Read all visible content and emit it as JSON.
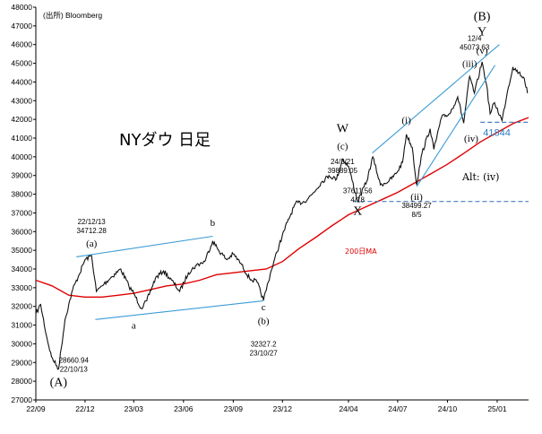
{
  "source": "(出所) Bloomberg",
  "title": "NYダウ 日足",
  "colors": {
    "price": "#111111",
    "ma": "#e00000",
    "channel": "#3b9bd6",
    "level": "#4a7fc1"
  },
  "chart_data": {
    "type": "line",
    "ylim": [
      27000,
      48000
    ],
    "xlim": [
      "2022-09-01",
      "2025-02-28"
    ],
    "grid": false,
    "y_ticks": [
      27000,
      28000,
      29000,
      30000,
      31000,
      32000,
      33000,
      34000,
      35000,
      36000,
      37000,
      38000,
      39000,
      40000,
      41000,
      42000,
      43000,
      44000,
      45000,
      46000,
      47000,
      48000
    ],
    "x_ticks": [
      {
        "date": "2022-09-01",
        "label": "22/09"
      },
      {
        "date": "2022-12-01",
        "label": "22/12"
      },
      {
        "date": "2023-03-01",
        "label": "23/03"
      },
      {
        "date": "2023-06-01",
        "label": "23/06"
      },
      {
        "date": "2023-09-01",
        "label": "23/09"
      },
      {
        "date": "2023-12-01",
        "label": "23/12"
      },
      {
        "date": "2024-04-01",
        "label": "24/04"
      },
      {
        "date": "2024-07-01",
        "label": "24/07"
      },
      {
        "date": "2024-10-01",
        "label": "24/10"
      },
      {
        "date": "2025-01-01",
        "label": "25/01"
      }
    ],
    "series": [
      {
        "role": "price",
        "points": [
          [
            "2022-09-01",
            31600
          ],
          [
            "2022-09-10",
            32100
          ],
          [
            "2022-09-20",
            30500
          ],
          [
            "2022-09-30",
            29300
          ],
          [
            "2022-10-13",
            28661
          ],
          [
            "2022-10-25",
            31300
          ],
          [
            "2022-11-08",
            32900
          ],
          [
            "2022-11-20",
            33700
          ],
          [
            "2022-12-01",
            34500
          ],
          [
            "2022-12-13",
            34712
          ],
          [
            "2022-12-22",
            32800
          ],
          [
            "2023-01-05",
            33200
          ],
          [
            "2023-01-20",
            33600
          ],
          [
            "2023-02-05",
            34000
          ],
          [
            "2023-02-20",
            33100
          ],
          [
            "2023-03-01",
            32700
          ],
          [
            "2023-03-15",
            31900
          ],
          [
            "2023-03-25",
            32300
          ],
          [
            "2023-04-10",
            33500
          ],
          [
            "2023-04-25",
            33900
          ],
          [
            "2023-05-10",
            33400
          ],
          [
            "2023-05-25",
            32800
          ],
          [
            "2023-06-10",
            33800
          ],
          [
            "2023-06-25",
            34200
          ],
          [
            "2023-07-10",
            34400
          ],
          [
            "2023-07-25",
            35500
          ],
          [
            "2023-08-05",
            35000
          ],
          [
            "2023-08-20",
            34500
          ],
          [
            "2023-09-01",
            34800
          ],
          [
            "2023-09-15",
            34300
          ],
          [
            "2023-10-01",
            33500
          ],
          [
            "2023-10-15",
            33300
          ],
          [
            "2023-10-27",
            32327
          ],
          [
            "2023-11-10",
            33900
          ],
          [
            "2023-11-25",
            35300
          ],
          [
            "2023-12-10",
            36500
          ],
          [
            "2023-12-25",
            37500
          ],
          [
            "2024-01-10",
            37600
          ],
          [
            "2024-01-25",
            38000
          ],
          [
            "2024-02-10",
            38600
          ],
          [
            "2024-02-25",
            39000
          ],
          [
            "2024-03-10",
            38800
          ],
          [
            "2024-03-21",
            39889
          ],
          [
            "2024-04-01",
            39500
          ],
          [
            "2024-04-18",
            37612
          ],
          [
            "2024-05-05",
            38700
          ],
          [
            "2024-05-16",
            40000
          ],
          [
            "2024-05-30",
            38500
          ],
          [
            "2024-06-15",
            38700
          ],
          [
            "2024-06-28",
            39100
          ],
          [
            "2024-07-10",
            39700
          ],
          [
            "2024-07-17",
            41200
          ],
          [
            "2024-07-28",
            40500
          ],
          [
            "2024-08-05",
            38499
          ],
          [
            "2024-08-15",
            40200
          ],
          [
            "2024-08-30",
            41500
          ],
          [
            "2024-09-06",
            40400
          ],
          [
            "2024-09-20",
            42100
          ],
          [
            "2024-10-05",
            42300
          ],
          [
            "2024-10-20",
            43200
          ],
          [
            "2024-10-31",
            41800
          ],
          [
            "2024-11-11",
            44300
          ],
          [
            "2024-11-20",
            43400
          ],
          [
            "2024-12-04",
            45074
          ],
          [
            "2024-12-12",
            43900
          ],
          [
            "2024-12-19",
            42300
          ],
          [
            "2024-12-27",
            42900
          ],
          [
            "2025-01-10",
            41938
          ],
          [
            "2025-01-20",
            43500
          ],
          [
            "2025-01-30",
            44800
          ],
          [
            "2025-02-10",
            44500
          ],
          [
            "2025-02-20",
            44200
          ],
          [
            "2025-02-26",
            43400
          ]
        ]
      },
      {
        "role": "ma",
        "points": [
          [
            "2022-09-01",
            33400
          ],
          [
            "2022-10-01",
            33100
          ],
          [
            "2022-11-01",
            32600
          ],
          [
            "2022-12-01",
            32500
          ],
          [
            "2023-01-01",
            32500
          ],
          [
            "2023-02-01",
            32600
          ],
          [
            "2023-03-01",
            32700
          ],
          [
            "2023-04-01",
            32900
          ],
          [
            "2023-05-01",
            33100
          ],
          [
            "2023-06-01",
            33200
          ],
          [
            "2023-07-01",
            33400
          ],
          [
            "2023-08-01",
            33700
          ],
          [
            "2023-09-01",
            33800
          ],
          [
            "2023-10-01",
            33900
          ],
          [
            "2023-11-01",
            34000
          ],
          [
            "2023-12-01",
            34400
          ],
          [
            "2024-01-01",
            35100
          ],
          [
            "2024-02-01",
            35700
          ],
          [
            "2024-03-01",
            36300
          ],
          [
            "2024-04-01",
            36900
          ],
          [
            "2024-05-01",
            37300
          ],
          [
            "2024-06-01",
            37700
          ],
          [
            "2024-07-01",
            38100
          ],
          [
            "2024-08-01",
            38600
          ],
          [
            "2024-09-01",
            39100
          ],
          [
            "2024-10-01",
            39600
          ],
          [
            "2024-11-01",
            40200
          ],
          [
            "2024-12-01",
            40800
          ],
          [
            "2025-01-01",
            41300
          ],
          [
            "2025-02-01",
            41800
          ],
          [
            "2025-02-28",
            42100
          ]
        ]
      }
    ],
    "channels": [
      {
        "name": "a-b channel upper",
        "from": [
          "2022-11-15",
          34650
        ],
        "to": [
          "2023-07-25",
          35750
        ]
      },
      {
        "name": "a-b channel lower",
        "from": [
          "2022-12-20",
          31300
        ],
        "to": [
          "2023-10-27",
          32300
        ]
      },
      {
        "name": "W-Y channel upper",
        "from": [
          "2024-05-15",
          40200
        ],
        "to": [
          "2025-01-05",
          46000
        ]
      },
      {
        "name": "W-Y channel lower",
        "from": [
          "2024-08-05",
          38400
        ],
        "to": [
          "2024-12-28",
          44900
        ]
      }
    ],
    "levels": [
      {
        "name": "support level",
        "value": 41844,
        "from": "2024-12-01",
        "to": "2025-02-28",
        "label": "41844"
      },
      {
        "name": "X level",
        "value": 37612,
        "from": "2024-04-10",
        "to": "2025-02-28"
      }
    ],
    "wave_labels": [
      {
        "text": "(A)",
        "date": "2022-10-13",
        "value": 27750,
        "size": "big"
      },
      {
        "text": "(a)",
        "date": "2022-12-13",
        "value": 35200,
        "size": "lbl"
      },
      {
        "text": "a",
        "date": "2023-03-01",
        "value": 30800,
        "size": "lbl"
      },
      {
        "text": "b",
        "date": "2023-07-25",
        "value": 36300,
        "size": "lbl"
      },
      {
        "text": "c",
        "date": "2023-10-27",
        "value": 31800,
        "size": "lbl"
      },
      {
        "text": "(b)",
        "date": "2023-10-27",
        "value": 31050,
        "size": "lbl"
      },
      {
        "text": "W",
        "date": "2024-03-21",
        "value": 41300,
        "size": "big"
      },
      {
        "text": "(c)",
        "date": "2024-03-21",
        "value": 40400,
        "size": "lbl"
      },
      {
        "text": "X",
        "date": "2024-04-18",
        "value": 36900,
        "size": "big"
      },
      {
        "text": "(i)",
        "date": "2024-07-17",
        "value": 41800,
        "size": "lbl"
      },
      {
        "text": "(ii)",
        "date": "2024-08-05",
        "value": 37700,
        "size": "lbl"
      },
      {
        "text": "(iii)",
        "date": "2024-11-11",
        "value": 44800,
        "size": "lbl"
      },
      {
        "text": "(iv)",
        "date": "2024-11-14",
        "value": 40800,
        "size": "lbl"
      },
      {
        "text": "(v)",
        "date": "2024-12-04",
        "value": 45500,
        "size": "lbl"
      },
      {
        "text": "Y",
        "date": "2024-12-04",
        "value": 46500,
        "size": "big"
      },
      {
        "text": "(B)",
        "date": "2024-12-04",
        "value": 47300,
        "size": "big"
      }
    ],
    "annotations": [
      {
        "lines": [
          "22/12/13",
          "34712.28"
        ],
        "date": "2022-12-13",
        "value": 36400
      },
      {
        "lines": [
          "28660.94",
          "22/10/13"
        ],
        "date": "2022-11-10",
        "value": 29000
      },
      {
        "lines": [
          "32327.2",
          "23/10/27"
        ],
        "date": "2023-10-27",
        "value": 29850
      },
      {
        "lines": [
          "24/3/21",
          "39889.05"
        ],
        "date": "2024-03-21",
        "value": 39600
      },
      {
        "lines": [
          "37611.56",
          "4/18"
        ],
        "date": "2024-04-18",
        "value": 38050
      },
      {
        "lines": [
          "38499.27",
          "8/5"
        ],
        "date": "2024-08-05",
        "value": 37250
      },
      {
        "lines": [
          "12/4",
          "45073.63"
        ],
        "date": "2024-11-20",
        "value": 46200
      }
    ],
    "ma_label": "200日MA",
    "alt_label": "Alt: (iv)"
  }
}
